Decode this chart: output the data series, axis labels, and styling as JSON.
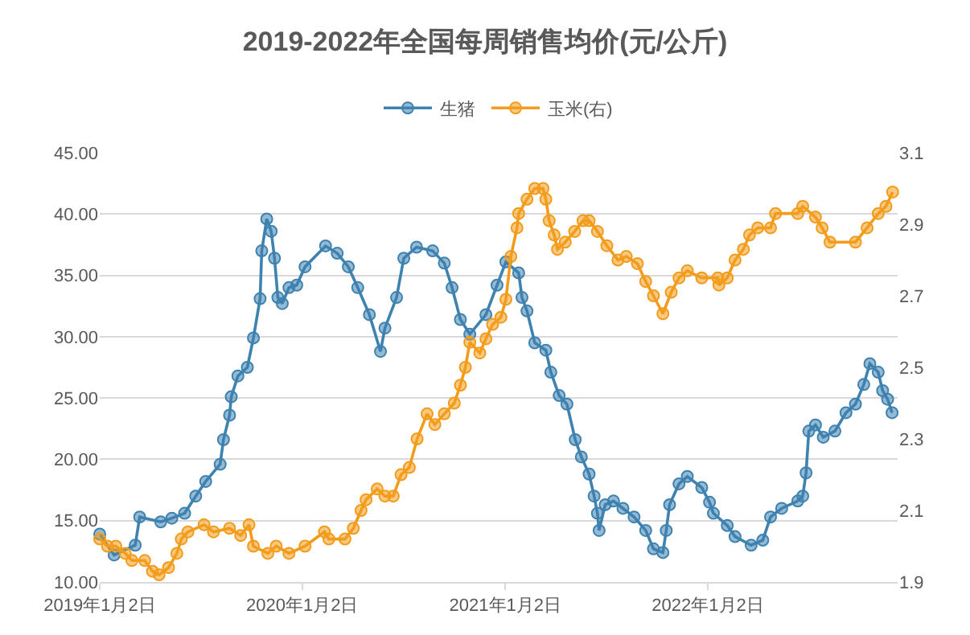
{
  "chart_data": {
    "type": "line",
    "title": "2019-2022年全国每周销售均价(元/公斤)",
    "legend": "top",
    "grid": "y",
    "marker": "circle",
    "line_style": "solid",
    "xlim": [
      "2019-01-02",
      "2022-12-10"
    ],
    "xticks": [
      {
        "value": "2019-01-02",
        "label": "2019年1月2日"
      },
      {
        "value": "2020-01-02",
        "label": "2020年1月2日"
      },
      {
        "value": "2021-01-02",
        "label": "2021年1月2日"
      },
      {
        "value": "2022-01-02",
        "label": "2022年1月2日"
      }
    ],
    "ylim": [
      10,
      45
    ],
    "yticks": [
      {
        "value": 10,
        "label": "10.00"
      },
      {
        "value": 15,
        "label": "15.00"
      },
      {
        "value": 20,
        "label": "20.00"
      },
      {
        "value": 25,
        "label": "25.00"
      },
      {
        "value": 30,
        "label": "30.00"
      },
      {
        "value": 35,
        "label": "35.00"
      },
      {
        "value": 40,
        "label": "40.00"
      },
      {
        "value": 45,
        "label": "45.00"
      }
    ],
    "y2lim": [
      1.9,
      3.1
    ],
    "y2ticks": [
      1.9,
      2.1,
      2.3,
      2.5,
      2.7,
      2.9,
      3.1
    ],
    "series": [
      {
        "name": "生猪",
        "color": "#3e82b0",
        "x": [
          "2019-01-02",
          "2019-01-28",
          "2019-03-07",
          "2019-03-15",
          "2019-04-22",
          "2019-05-12",
          "2019-06-04",
          "2019-06-24",
          "2019-07-12",
          "2019-08-07",
          "2019-08-13",
          "2019-08-24",
          "2019-08-27",
          "2019-09-08",
          "2019-09-25",
          "2019-10-06",
          "2019-10-18",
          "2019-10-21",
          "2019-10-30",
          "2019-11-07",
          "2019-11-13",
          "2019-11-19",
          "2019-11-27",
          "2019-12-09",
          "2019-12-23",
          "2020-01-07",
          "2020-02-13",
          "2020-03-05",
          "2020-03-25",
          "2020-04-11",
          "2020-05-02",
          "2020-05-22",
          "2020-05-30",
          "2020-06-20",
          "2020-07-03",
          "2020-07-26",
          "2020-08-24",
          "2020-09-14",
          "2020-09-28",
          "2020-10-13",
          "2020-10-30",
          "2020-11-28",
          "2020-12-18",
          "2021-01-03",
          "2021-01-26",
          "2021-02-01",
          "2021-02-10",
          "2021-02-24",
          "2021-03-16",
          "2021-03-25",
          "2021-04-09",
          "2021-04-23",
          "2021-05-08",
          "2021-05-19",
          "2021-06-02",
          "2021-06-11",
          "2021-06-17",
          "2021-06-20",
          "2021-07-01",
          "2021-07-16",
          "2021-08-02",
          "2021-08-22",
          "2021-09-12",
          "2021-09-26",
          "2021-10-13",
          "2021-10-19",
          "2021-10-25",
          "2021-11-11",
          "2021-11-26",
          "2021-12-22",
          "2022-01-05",
          "2022-01-12",
          "2022-02-06",
          "2022-02-20",
          "2022-03-21",
          "2022-04-11",
          "2022-04-25",
          "2022-05-15",
          "2022-06-13",
          "2022-06-22",
          "2022-06-28",
          "2022-07-03",
          "2022-07-15",
          "2022-07-29",
          "2022-08-19",
          "2022-09-08",
          "2022-09-25",
          "2022-10-10",
          "2022-10-21",
          "2022-11-05",
          "2022-11-13",
          "2022-11-22",
          "2022-11-30"
        ],
        "values": [
          13.9,
          12.2,
          13.0,
          15.3,
          14.9,
          15.2,
          15.6,
          17.0,
          18.2,
          19.6,
          21.6,
          23.6,
          25.1,
          26.8,
          27.5,
          29.9,
          33.1,
          37.0,
          39.6,
          38.6,
          36.4,
          33.2,
          32.7,
          34.0,
          34.2,
          35.7,
          37.4,
          36.8,
          35.7,
          34.0,
          31.8,
          28.8,
          30.7,
          33.2,
          36.4,
          37.3,
          37.0,
          36.0,
          34.0,
          31.4,
          30.2,
          31.8,
          34.2,
          36.1,
          35.2,
          33.2,
          32.1,
          29.5,
          28.9,
          27.1,
          25.2,
          24.5,
          21.6,
          20.2,
          18.8,
          17.0,
          15.6,
          14.2,
          16.3,
          16.6,
          16.0,
          15.3,
          14.2,
          12.7,
          12.4,
          14.2,
          16.3,
          18.0,
          18.6,
          17.7,
          16.5,
          15.6,
          14.6,
          13.7,
          13.0,
          13.4,
          15.3,
          16.0,
          16.6,
          17.0,
          18.9,
          22.3,
          22.8,
          21.8,
          22.3,
          23.8,
          24.5,
          26.1,
          27.8,
          27.1,
          25.6,
          24.9,
          23.8
        ]
      },
      {
        "name": "玉米(右)",
        "color": "#f39c1c",
        "axis": "y2",
        "x": [
          "2019-01-02",
          "2019-01-16",
          "2019-01-31",
          "2019-02-17",
          "2019-03-01",
          "2019-03-24",
          "2019-04-07",
          "2019-04-19",
          "2019-05-06",
          "2019-05-21",
          "2019-05-29",
          "2019-06-10",
          "2019-07-09",
          "2019-07-26",
          "2019-08-24",
          "2019-09-13",
          "2019-09-28",
          "2019-10-06",
          "2019-11-01",
          "2019-11-16",
          "2019-12-09",
          "2020-01-07",
          "2020-02-11",
          "2020-02-19",
          "2020-03-19",
          "2020-04-03",
          "2020-04-17",
          "2020-04-26",
          "2020-05-16",
          "2020-05-30",
          "2020-06-14",
          "2020-06-28",
          "2020-07-13",
          "2020-07-27",
          "2020-08-14",
          "2020-08-28",
          "2020-09-14",
          "2020-10-02",
          "2020-10-13",
          "2020-10-22",
          "2020-10-30",
          "2020-11-17",
          "2020-11-28",
          "2020-12-10",
          "2020-12-25",
          "2021-01-03",
          "2021-01-12",
          "2021-01-23",
          "2021-01-26",
          "2021-02-10",
          "2021-02-24",
          "2021-03-11",
          "2021-03-16",
          "2021-03-22",
          "2021-03-31",
          "2021-04-06",
          "2021-04-20",
          "2021-05-07",
          "2021-05-22",
          "2021-06-02",
          "2021-06-17",
          "2021-07-04",
          "2021-07-24",
          "2021-08-08",
          "2021-08-28",
          "2021-09-12",
          "2021-09-26",
          "2021-10-13",
          "2021-10-28",
          "2021-11-11",
          "2021-11-26",
          "2021-12-22",
          "2022-01-20",
          "2022-01-22",
          "2022-02-06",
          "2022-02-20",
          "2022-03-07",
          "2022-03-18",
          "2022-04-02",
          "2022-04-25",
          "2022-05-04",
          "2022-06-13",
          "2022-06-22",
          "2022-07-15",
          "2022-07-27",
          "2022-08-10",
          "2022-09-25",
          "2022-10-16",
          "2022-11-05",
          "2022-11-19",
          "2022-12-01"
        ],
        "values": [
          2.02,
          2.0,
          2.0,
          1.98,
          1.96,
          1.96,
          1.93,
          1.92,
          1.94,
          1.98,
          2.02,
          2.04,
          2.06,
          2.04,
          2.05,
          2.03,
          2.06,
          2.0,
          1.98,
          2.0,
          1.98,
          2.0,
          2.04,
          2.02,
          2.02,
          2.05,
          2.1,
          2.13,
          2.16,
          2.14,
          2.14,
          2.2,
          2.22,
          2.3,
          2.37,
          2.34,
          2.37,
          2.4,
          2.45,
          2.5,
          2.57,
          2.54,
          2.58,
          2.62,
          2.64,
          2.69,
          2.81,
          2.89,
          2.93,
          2.97,
          3.0,
          3.0,
          2.97,
          2.91,
          2.87,
          2.83,
          2.85,
          2.88,
          2.91,
          2.91,
          2.88,
          2.84,
          2.8,
          2.81,
          2.79,
          2.74,
          2.7,
          2.65,
          2.71,
          2.75,
          2.77,
          2.75,
          2.75,
          2.73,
          2.75,
          2.8,
          2.83,
          2.87,
          2.89,
          2.89,
          2.93,
          2.93,
          2.95,
          2.92,
          2.89,
          2.85,
          2.85,
          2.89,
          2.93,
          2.95,
          2.99
        ]
      }
    ]
  }
}
